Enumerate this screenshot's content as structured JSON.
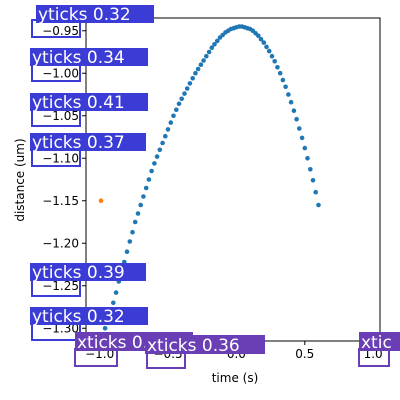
{
  "chart_data": {
    "type": "scatter",
    "title": "",
    "xlabel": "time (s)",
    "ylabel": "distance (um)",
    "xlim": [
      -1.1,
      1.05
    ],
    "ylim": [
      -1.315,
      -0.935
    ],
    "grid": false,
    "xticks": [
      {
        "value": -1.0,
        "label": "−1.0"
      },
      {
        "value": -0.5,
        "label": "−0.5"
      },
      {
        "value": 0.0,
        "label": "0.0"
      },
      {
        "value": 0.5,
        "label": "0.5"
      },
      {
        "value": 1.0,
        "label": "1.0"
      }
    ],
    "yticks": [
      {
        "value": -0.95,
        "label": "−0.95"
      },
      {
        "value": -1.0,
        "label": "−1.00"
      },
      {
        "value": -1.05,
        "label": "−1.05"
      },
      {
        "value": -1.1,
        "label": "−1.10"
      },
      {
        "value": -1.15,
        "label": "−1.15"
      },
      {
        "value": -1.2,
        "label": "−1.20"
      },
      {
        "value": -1.25,
        "label": "−1.25"
      },
      {
        "value": -1.3,
        "label": "−1.30"
      }
    ],
    "series": [
      {
        "color": "#1f77b4",
        "points": [
          [
            -0.96,
            -1.3
          ],
          [
            -0.93,
            -1.285
          ],
          [
            -0.9,
            -1.27
          ],
          [
            -0.88,
            -1.258
          ],
          [
            -0.86,
            -1.245
          ],
          [
            -0.84,
            -1.233
          ],
          [
            -0.82,
            -1.222
          ],
          [
            -0.8,
            -1.21
          ],
          [
            -0.78,
            -1.198
          ],
          [
            -0.76,
            -1.187
          ],
          [
            -0.74,
            -1.175
          ],
          [
            -0.72,
            -1.165
          ],
          [
            -0.7,
            -1.155
          ],
          [
            -0.68,
            -1.145
          ],
          [
            -0.66,
            -1.135
          ],
          [
            -0.64,
            -1.125
          ],
          [
            -0.62,
            -1.115
          ],
          [
            -0.6,
            -1.106
          ],
          [
            -0.58,
            -1.098
          ],
          [
            -0.56,
            -1.09
          ],
          [
            -0.54,
            -1.082
          ],
          [
            -0.52,
            -1.074
          ],
          [
            -0.5,
            -1.066
          ],
          [
            -0.48,
            -1.058
          ],
          [
            -0.46,
            -1.05
          ],
          [
            -0.44,
            -1.043
          ],
          [
            -0.42,
            -1.036
          ],
          [
            -0.4,
            -1.03
          ],
          [
            -0.38,
            -1.024
          ],
          [
            -0.36,
            -1.018
          ],
          [
            -0.34,
            -1.012
          ],
          [
            -0.32,
            -1.006
          ],
          [
            -0.3,
            -1.0
          ],
          [
            -0.28,
            -0.995
          ],
          [
            -0.26,
            -0.99
          ],
          [
            -0.24,
            -0.985
          ],
          [
            -0.22,
            -0.98
          ],
          [
            -0.2,
            -0.975
          ],
          [
            -0.18,
            -0.97
          ],
          [
            -0.16,
            -0.966
          ],
          [
            -0.14,
            -0.962
          ],
          [
            -0.12,
            -0.958
          ],
          [
            -0.1,
            -0.955
          ],
          [
            -0.08,
            -0.952
          ],
          [
            -0.06,
            -0.95
          ],
          [
            -0.04,
            -0.948
          ],
          [
            -0.02,
            -0.947
          ],
          [
            0.0,
            -0.946
          ],
          [
            0.02,
            -0.945
          ],
          [
            0.04,
            -0.945
          ],
          [
            0.06,
            -0.946
          ],
          [
            0.08,
            -0.947
          ],
          [
            0.1,
            -0.948
          ],
          [
            0.12,
            -0.95
          ],
          [
            0.14,
            -0.953
          ],
          [
            0.16,
            -0.956
          ],
          [
            0.18,
            -0.96
          ],
          [
            0.2,
            -0.964
          ],
          [
            0.22,
            -0.969
          ],
          [
            0.24,
            -0.974
          ],
          [
            0.26,
            -0.98
          ],
          [
            0.28,
            -0.986
          ],
          [
            0.3,
            -0.993
          ],
          [
            0.32,
            -1.0
          ],
          [
            0.34,
            -1.008
          ],
          [
            0.36,
            -1.016
          ],
          [
            0.38,
            -1.025
          ],
          [
            0.4,
            -1.034
          ],
          [
            0.42,
            -1.044
          ],
          [
            0.44,
            -1.054
          ],
          [
            0.46,
            -1.065
          ],
          [
            0.48,
            -1.076
          ],
          [
            0.5,
            -1.088
          ],
          [
            0.52,
            -1.1
          ],
          [
            0.54,
            -1.113
          ],
          [
            0.56,
            -1.126
          ],
          [
            0.58,
            -1.14
          ],
          [
            0.6,
            -1.155
          ]
        ]
      },
      {
        "color": "#ff7f0e",
        "points": [
          [
            -0.99,
            -1.15
          ]
        ]
      }
    ]
  },
  "detection_labels": {
    "yticks": [
      "yticks 0.32",
      "yticks 0.34",
      "yticks 0.41",
      "yticks 0.37",
      "yticks 0.39",
      "yticks 0.32"
    ],
    "xticks": [
      "xticks 0.36",
      "xticks 0.36",
      "xtic"
    ],
    "colors": {
      "ytick_box": "#3b3bd6",
      "xtick_box": "#6a3fb5"
    }
  }
}
